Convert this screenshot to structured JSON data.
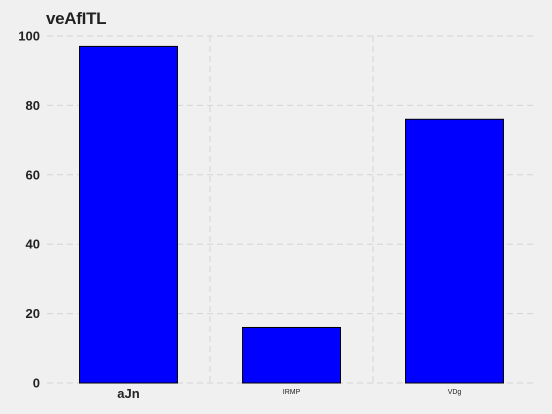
{
  "chart_data": {
    "type": "bar",
    "title": "veAfITL",
    "xlabel": "",
    "ylabel": "",
    "categories": [
      "aJn",
      "IRMP",
      "VDg"
    ],
    "values": [
      97,
      16,
      76
    ],
    "ylim": [
      0,
      100
    ],
    "yticks": [
      0,
      20,
      40,
      60,
      80,
      100
    ],
    "grid": true,
    "legend": "none",
    "colors": {
      "bar": "#0000ff",
      "bar_edge": "#000000",
      "background": "#f0f0f0",
      "grid": "#d4d4d4",
      "text": "#222222"
    }
  }
}
